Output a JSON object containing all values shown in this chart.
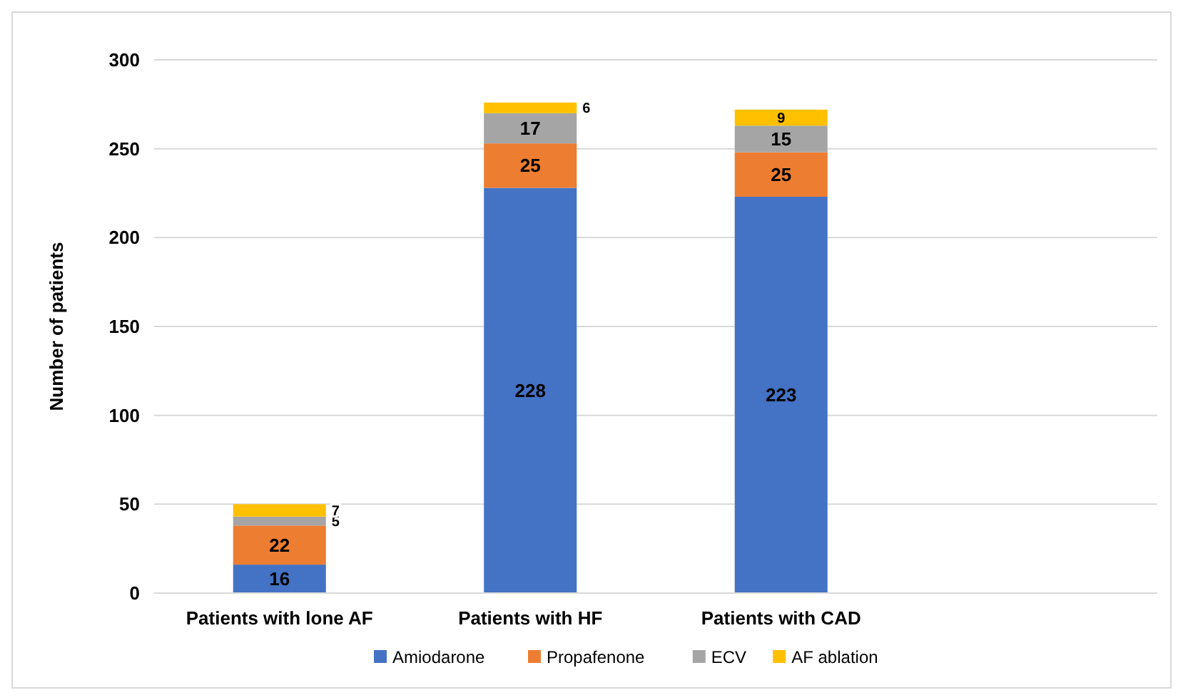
{
  "chart_data": {
    "type": "bar",
    "stacked": true,
    "ylabel": "Number of patients",
    "categories": [
      "Patients with lone AF",
      "Patients with HF",
      "Patients with CAD",
      null
    ],
    "series": [
      {
        "name": "Amiodarone",
        "color": "#4472c4",
        "values": [
          16,
          228,
          223,
          null
        ]
      },
      {
        "name": "Propafenone",
        "color": "#ed7d31",
        "values": [
          22,
          25,
          25,
          null
        ]
      },
      {
        "name": "ECV",
        "color": "#a5a5a5",
        "values": [
          5,
          17,
          15,
          null
        ]
      },
      {
        "name": "AF ablation",
        "color": "#ffc000",
        "values": [
          7,
          6,
          9,
          null
        ]
      }
    ],
    "ylim": [
      0,
      300
    ],
    "yticks": [
      0,
      50,
      100,
      150,
      200,
      250,
      300
    ],
    "grid": "y",
    "legend": "bottom",
    "data_labels": true
  }
}
